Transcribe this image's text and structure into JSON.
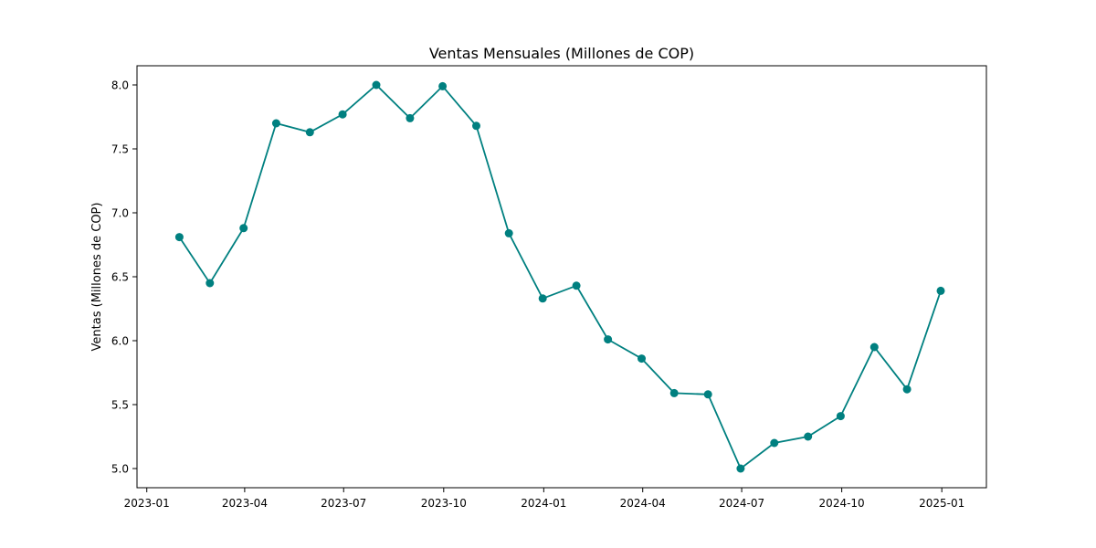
{
  "chart_data": {
    "type": "line",
    "title": "Ventas Mensuales (Millones de COP)",
    "xlabel": "",
    "ylabel": "Ventas (Millones de COP)",
    "x_tick_labels": [
      "2023-01",
      "2023-04",
      "2023-07",
      "2023-10",
      "2024-01",
      "2024-04",
      "2024-07",
      "2024-10",
      "2025-01"
    ],
    "y_tick_labels": [
      "5.0",
      "5.5",
      "6.0",
      "6.5",
      "7.0",
      "7.5",
      "8.0"
    ],
    "ylim": [
      4.85,
      8.15
    ],
    "xlim": [
      "2022-12-23",
      "2025-02-11"
    ],
    "grid": false,
    "line_color": "#008080",
    "marker": "circle",
    "series": [
      {
        "x": [
          "2023-01-31",
          "2023-02-28",
          "2023-03-31",
          "2023-04-30",
          "2023-05-31",
          "2023-06-30",
          "2023-07-31",
          "2023-08-31",
          "2023-09-30",
          "2023-10-31",
          "2023-11-30",
          "2023-12-31",
          "2024-01-31",
          "2024-02-29",
          "2024-03-31",
          "2024-04-30",
          "2024-05-31",
          "2024-06-30",
          "2024-07-31",
          "2024-08-31",
          "2024-09-30",
          "2024-10-31",
          "2024-11-30",
          "2024-12-31"
        ],
        "y": [
          6.81,
          6.45,
          6.88,
          7.7,
          7.63,
          7.77,
          8.0,
          7.74,
          7.99,
          7.68,
          6.84,
          6.33,
          6.43,
          6.01,
          5.86,
          5.59,
          5.58,
          5.0,
          5.2,
          5.25,
          5.41,
          5.95,
          5.62,
          6.39
        ]
      }
    ]
  }
}
